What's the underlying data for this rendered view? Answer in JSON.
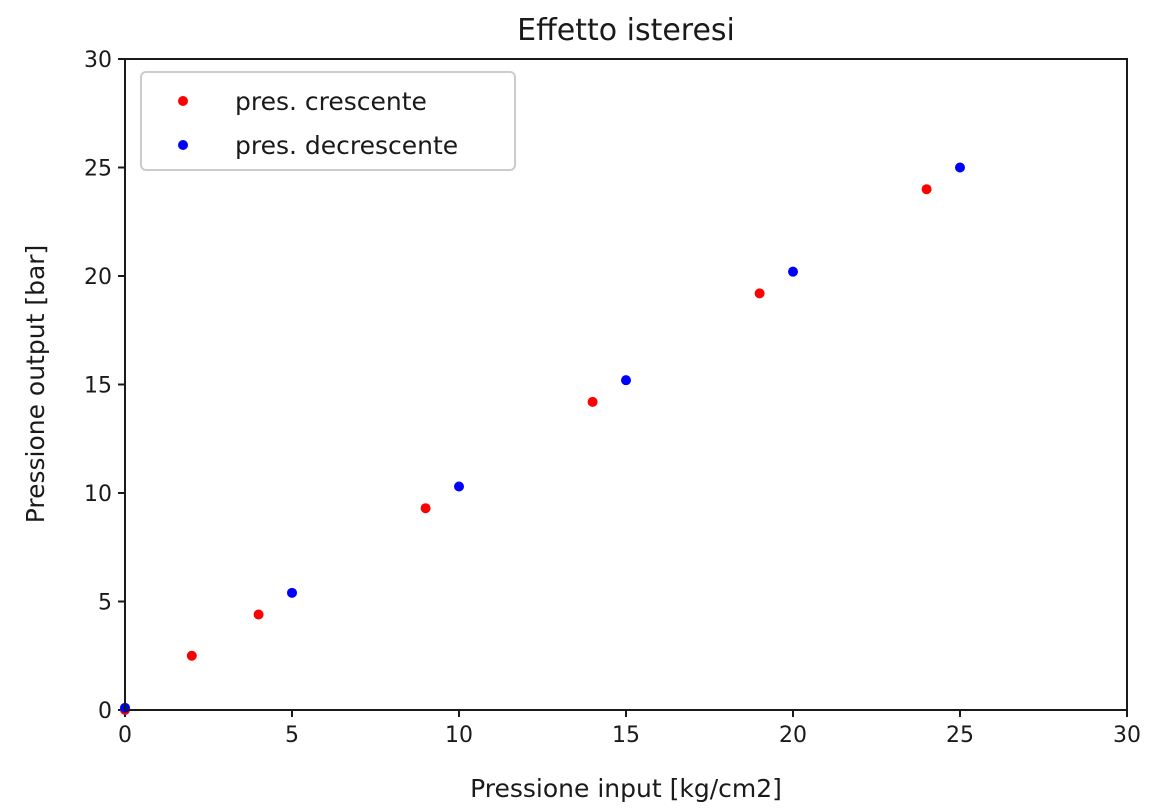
{
  "chart_data": {
    "type": "scatter",
    "title": "Effetto isteresi",
    "xlabel": "Pressione input [kg/cm2]",
    "ylabel": "Pressione output [bar]",
    "xlim": [
      0,
      30
    ],
    "ylim": [
      0,
      30
    ],
    "xticks": [
      "0",
      "5",
      "10",
      "15",
      "20",
      "25",
      "30"
    ],
    "yticks": [
      "0",
      "5",
      "10",
      "15",
      "20",
      "25",
      "30"
    ],
    "grid": false,
    "legend_position": "top-left",
    "series": [
      {
        "name": "pres. crescente",
        "color": "#ff0000",
        "points": [
          {
            "x": 0,
            "y": 0
          },
          {
            "x": 2,
            "y": 2.5
          },
          {
            "x": 4,
            "y": 4.4
          },
          {
            "x": 9,
            "y": 9.3
          },
          {
            "x": 14,
            "y": 14.2
          },
          {
            "x": 19,
            "y": 19.2
          },
          {
            "x": 24,
            "y": 24.0
          }
        ]
      },
      {
        "name": "pres. decrescente",
        "color": "#0000ff",
        "points": [
          {
            "x": 25,
            "y": 25.0
          },
          {
            "x": 20,
            "y": 20.2
          },
          {
            "x": 15,
            "y": 15.2
          },
          {
            "x": 10,
            "y": 10.3
          },
          {
            "x": 5,
            "y": 5.4
          },
          {
            "x": 0,
            "y": 0.1
          }
        ]
      }
    ]
  }
}
